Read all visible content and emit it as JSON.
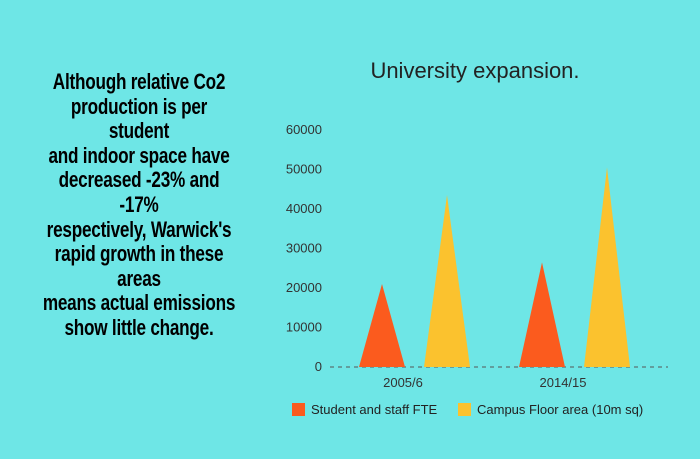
{
  "blurb": {
    "lines": [
      "Although relative Co2",
      "production is  per student",
      "and indoor space have",
      "decreased -23% and -17%",
      "respectively, Warwick's",
      "rapid growth in these areas",
      "means actual emissions",
      "show little change."
    ]
  },
  "colors": {
    "background": "#6ee6e6",
    "series_1": "#fb5b1e",
    "series_2": "#fbc22e"
  },
  "chart_data": {
    "type": "bar",
    "mark_shape": "triangle",
    "title": "University expansion.",
    "categories": [
      "2005/6",
      "2014/15"
    ],
    "series": [
      {
        "name": "Student and staff FTE",
        "values": [
          21000,
          26500
        ],
        "color": "#fb5b1e"
      },
      {
        "name": "Campus Floor area (10m sq)",
        "values": [
          43500,
          50500
        ],
        "color": "#fbc22e"
      }
    ],
    "ylim": [
      0,
      60000
    ],
    "yticks": [
      0,
      10000,
      20000,
      30000,
      40000,
      50000,
      60000
    ],
    "grid": false,
    "legend_position": "bottom"
  }
}
